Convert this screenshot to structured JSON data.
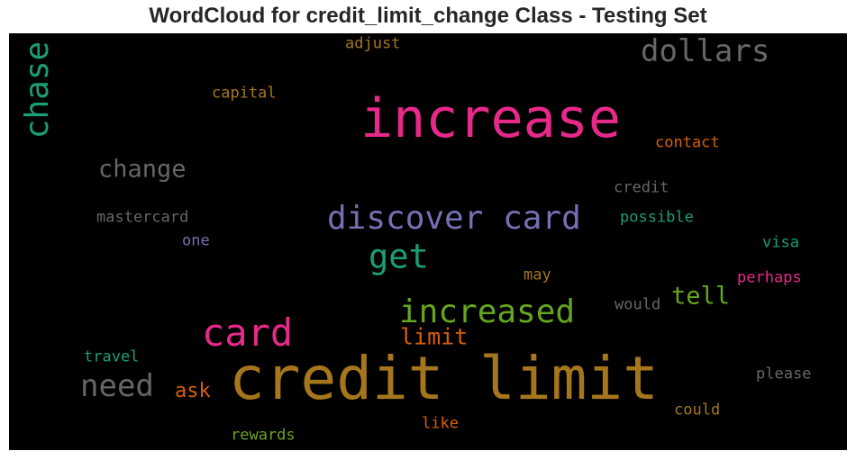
{
  "title": "WordCloud for credit_limit_change Class - Testing Set",
  "palette": {
    "pink": "#e7298a",
    "orange": "#d95f02",
    "gold": "#a6761d",
    "teal": "#1b9e77",
    "purple": "#7570b3",
    "green": "#66a61e",
    "gray": "#666666",
    "background": "#000000"
  },
  "words": [
    {
      "text": "credit limit",
      "color": "#a6761d"
    },
    {
      "text": "increase",
      "color": "#e7298a"
    },
    {
      "text": "discover card",
      "color": "#7570b3"
    },
    {
      "text": "card",
      "color": "#e7298a"
    },
    {
      "text": "increased",
      "color": "#66a61e"
    },
    {
      "text": "dollars",
      "color": "#666666"
    },
    {
      "text": "chase",
      "color": "#1b9e77"
    },
    {
      "text": "get",
      "color": "#1b9e77"
    },
    {
      "text": "need",
      "color": "#666666"
    },
    {
      "text": "change",
      "color": "#666666"
    },
    {
      "text": "tell",
      "color": "#66a61e"
    },
    {
      "text": "limit",
      "color": "#d95f02"
    },
    {
      "text": "ask",
      "color": "#d95f02"
    },
    {
      "text": "adjust",
      "color": "#a6761d"
    },
    {
      "text": "capital",
      "color": "#a6761d"
    },
    {
      "text": "contact",
      "color": "#d95f02"
    },
    {
      "text": "credit",
      "color": "#666666"
    },
    {
      "text": "mastercard",
      "color": "#666666"
    },
    {
      "text": "possible",
      "color": "#1b9e77"
    },
    {
      "text": "one",
      "color": "#7570b3"
    },
    {
      "text": "visa",
      "color": "#1b9e77"
    },
    {
      "text": "may",
      "color": "#a6761d"
    },
    {
      "text": "perhaps",
      "color": "#e7298a"
    },
    {
      "text": "would",
      "color": "#666666"
    },
    {
      "text": "travel",
      "color": "#1b9e77"
    },
    {
      "text": "please",
      "color": "#666666"
    },
    {
      "text": "could",
      "color": "#a6761d"
    },
    {
      "text": "like",
      "color": "#d95f02"
    },
    {
      "text": "rewards",
      "color": "#66a61e"
    }
  ]
}
